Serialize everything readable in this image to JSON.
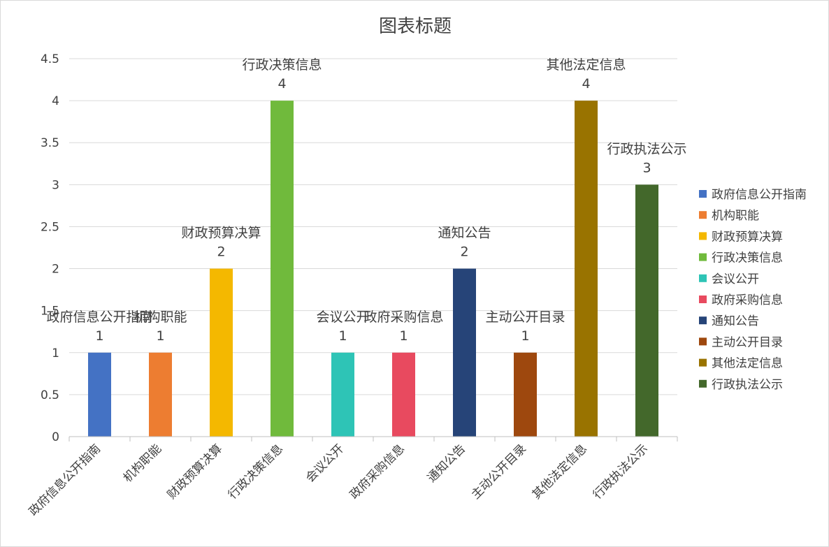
{
  "chart_data": {
    "type": "bar",
    "title": "图表标题",
    "categories": [
      "政府信息公开指南",
      "机构职能",
      "财政预算决算",
      "行政决策信息",
      "会议公开",
      "政府采购信息",
      "通知公告",
      "主动公开目录",
      "其他法定信息",
      "行政执法公示"
    ],
    "values": [
      1,
      1,
      2,
      4,
      1,
      1,
      2,
      1,
      4,
      3
    ],
    "colors": [
      "#4472C4",
      "#ED7D31",
      "#F4B800",
      "#70BA3C",
      "#2EC4B6",
      "#E84A5F",
      "#264478",
      "#9E480E",
      "#997300",
      "#43682B"
    ],
    "yticks": [
      "0",
      "0.5",
      "1",
      "1.5",
      "2",
      "2.5",
      "3",
      "3.5",
      "4",
      "4.5"
    ],
    "ylim": [
      0,
      4.5
    ],
    "grid": true,
    "legend_position": "right",
    "data_labels": [
      "1",
      "1",
      "2",
      "4",
      "1",
      "1",
      "2",
      "1",
      "4",
      "3"
    ]
  }
}
